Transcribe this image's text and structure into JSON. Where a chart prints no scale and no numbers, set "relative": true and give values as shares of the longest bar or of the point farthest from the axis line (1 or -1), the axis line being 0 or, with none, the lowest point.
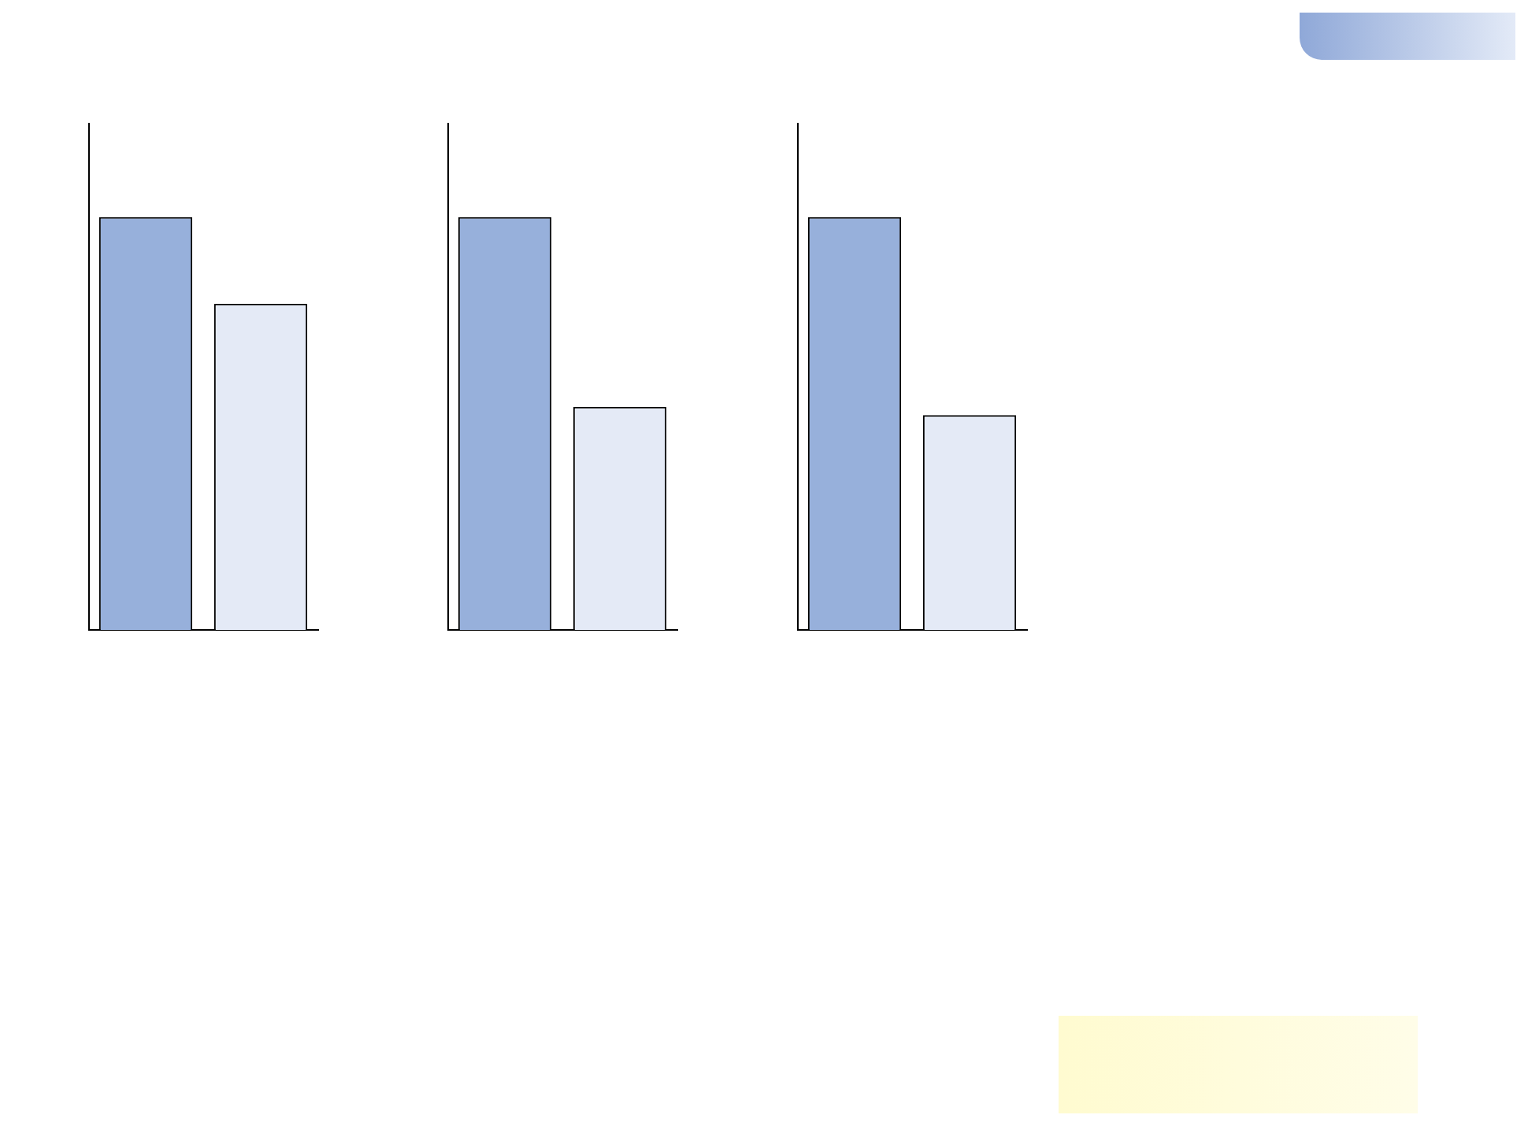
{
  "chart_data": [
    {
      "type": "bar",
      "relative": true,
      "categories": [
        null,
        null
      ],
      "colors": [
        "#97b0db",
        "#e4eaf6"
      ],
      "values": [
        1,
        0.79
      ]
    },
    {
      "type": "bar",
      "relative": true,
      "categories": [
        null,
        null
      ],
      "colors": [
        "#97b0db",
        "#e4eaf6"
      ],
      "values": [
        1,
        0.54
      ]
    },
    {
      "type": "bar",
      "relative": true,
      "categories": [
        null,
        null
      ],
      "colors": [
        "#97b0db",
        "#e4eaf6"
      ],
      "values": [
        1,
        0.52
      ]
    }
  ]
}
